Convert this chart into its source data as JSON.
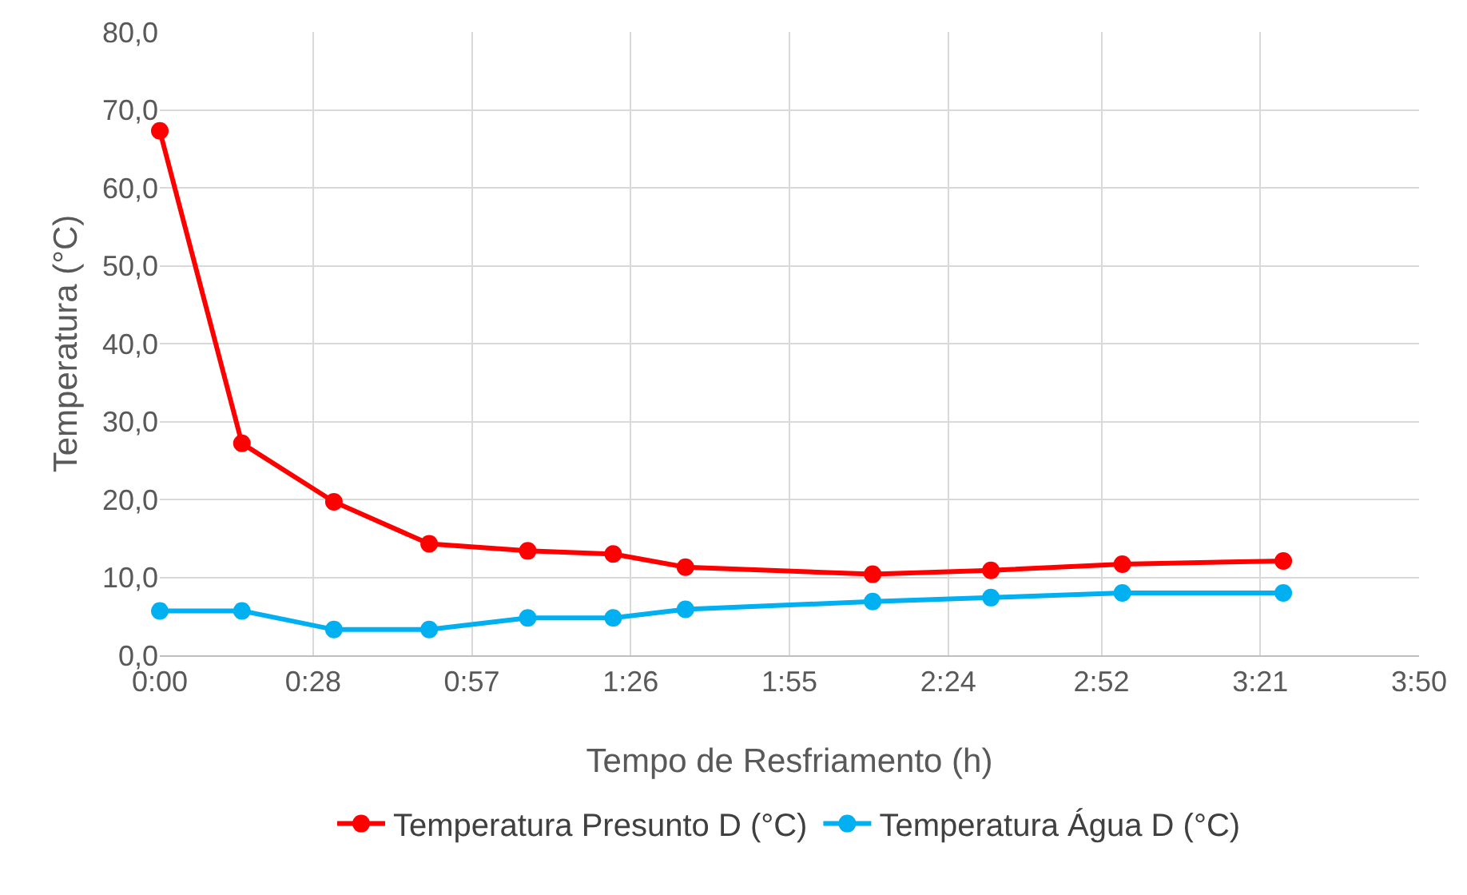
{
  "chart_data": {
    "type": "line",
    "xlabel": "Tempo de Resfriamento (h)",
    "ylabel": "Temperatura (°C)",
    "x": [
      0,
      0.25,
      0.53,
      0.82,
      1.12,
      1.38,
      1.6,
      2.17,
      2.53,
      2.93,
      3.42
    ],
    "series": [
      {
        "name": "Temperatura Presunto D (°C)",
        "color": "#ff0000",
        "values": [
          67.3,
          27.2,
          19.7,
          14.3,
          13.4,
          13.0,
          11.3,
          10.4,
          10.9,
          11.7,
          12.1
        ]
      },
      {
        "name": "Temperatura Água D (°C)",
        "color": "#00b0f0",
        "values": [
          5.7,
          5.7,
          3.3,
          3.3,
          4.8,
          4.8,
          5.9,
          6.9,
          7.4,
          8.0,
          8.0
        ]
      }
    ],
    "xlim": [
      0,
      3.8333
    ],
    "xticks": [
      {
        "value": 0,
        "label": "0:00"
      },
      {
        "value": 0.4667,
        "label": "0:28"
      },
      {
        "value": 0.95,
        "label": "0:57"
      },
      {
        "value": 1.4333,
        "label": "1:26"
      },
      {
        "value": 1.9167,
        "label": "1:55"
      },
      {
        "value": 2.4,
        "label": "2:24"
      },
      {
        "value": 2.8667,
        "label": "2:52"
      },
      {
        "value": 3.35,
        "label": "3:21"
      },
      {
        "value": 3.8333,
        "label": "3:50"
      }
    ],
    "ylim": [
      0,
      80
    ],
    "yticks": [
      {
        "value": 0,
        "label": "0,0"
      },
      {
        "value": 10,
        "label": "10,0"
      },
      {
        "value": 20,
        "label": "20,0"
      },
      {
        "value": 30,
        "label": "30,0"
      },
      {
        "value": 40,
        "label": "40,0"
      },
      {
        "value": 50,
        "label": "50,0"
      },
      {
        "value": 60,
        "label": "60,0"
      },
      {
        "value": 70,
        "label": "70,0"
      },
      {
        "value": 80,
        "label": "80,0"
      }
    ],
    "grid": true,
    "legend": "bottom",
    "marker": "circle",
    "line_style": "solid"
  }
}
